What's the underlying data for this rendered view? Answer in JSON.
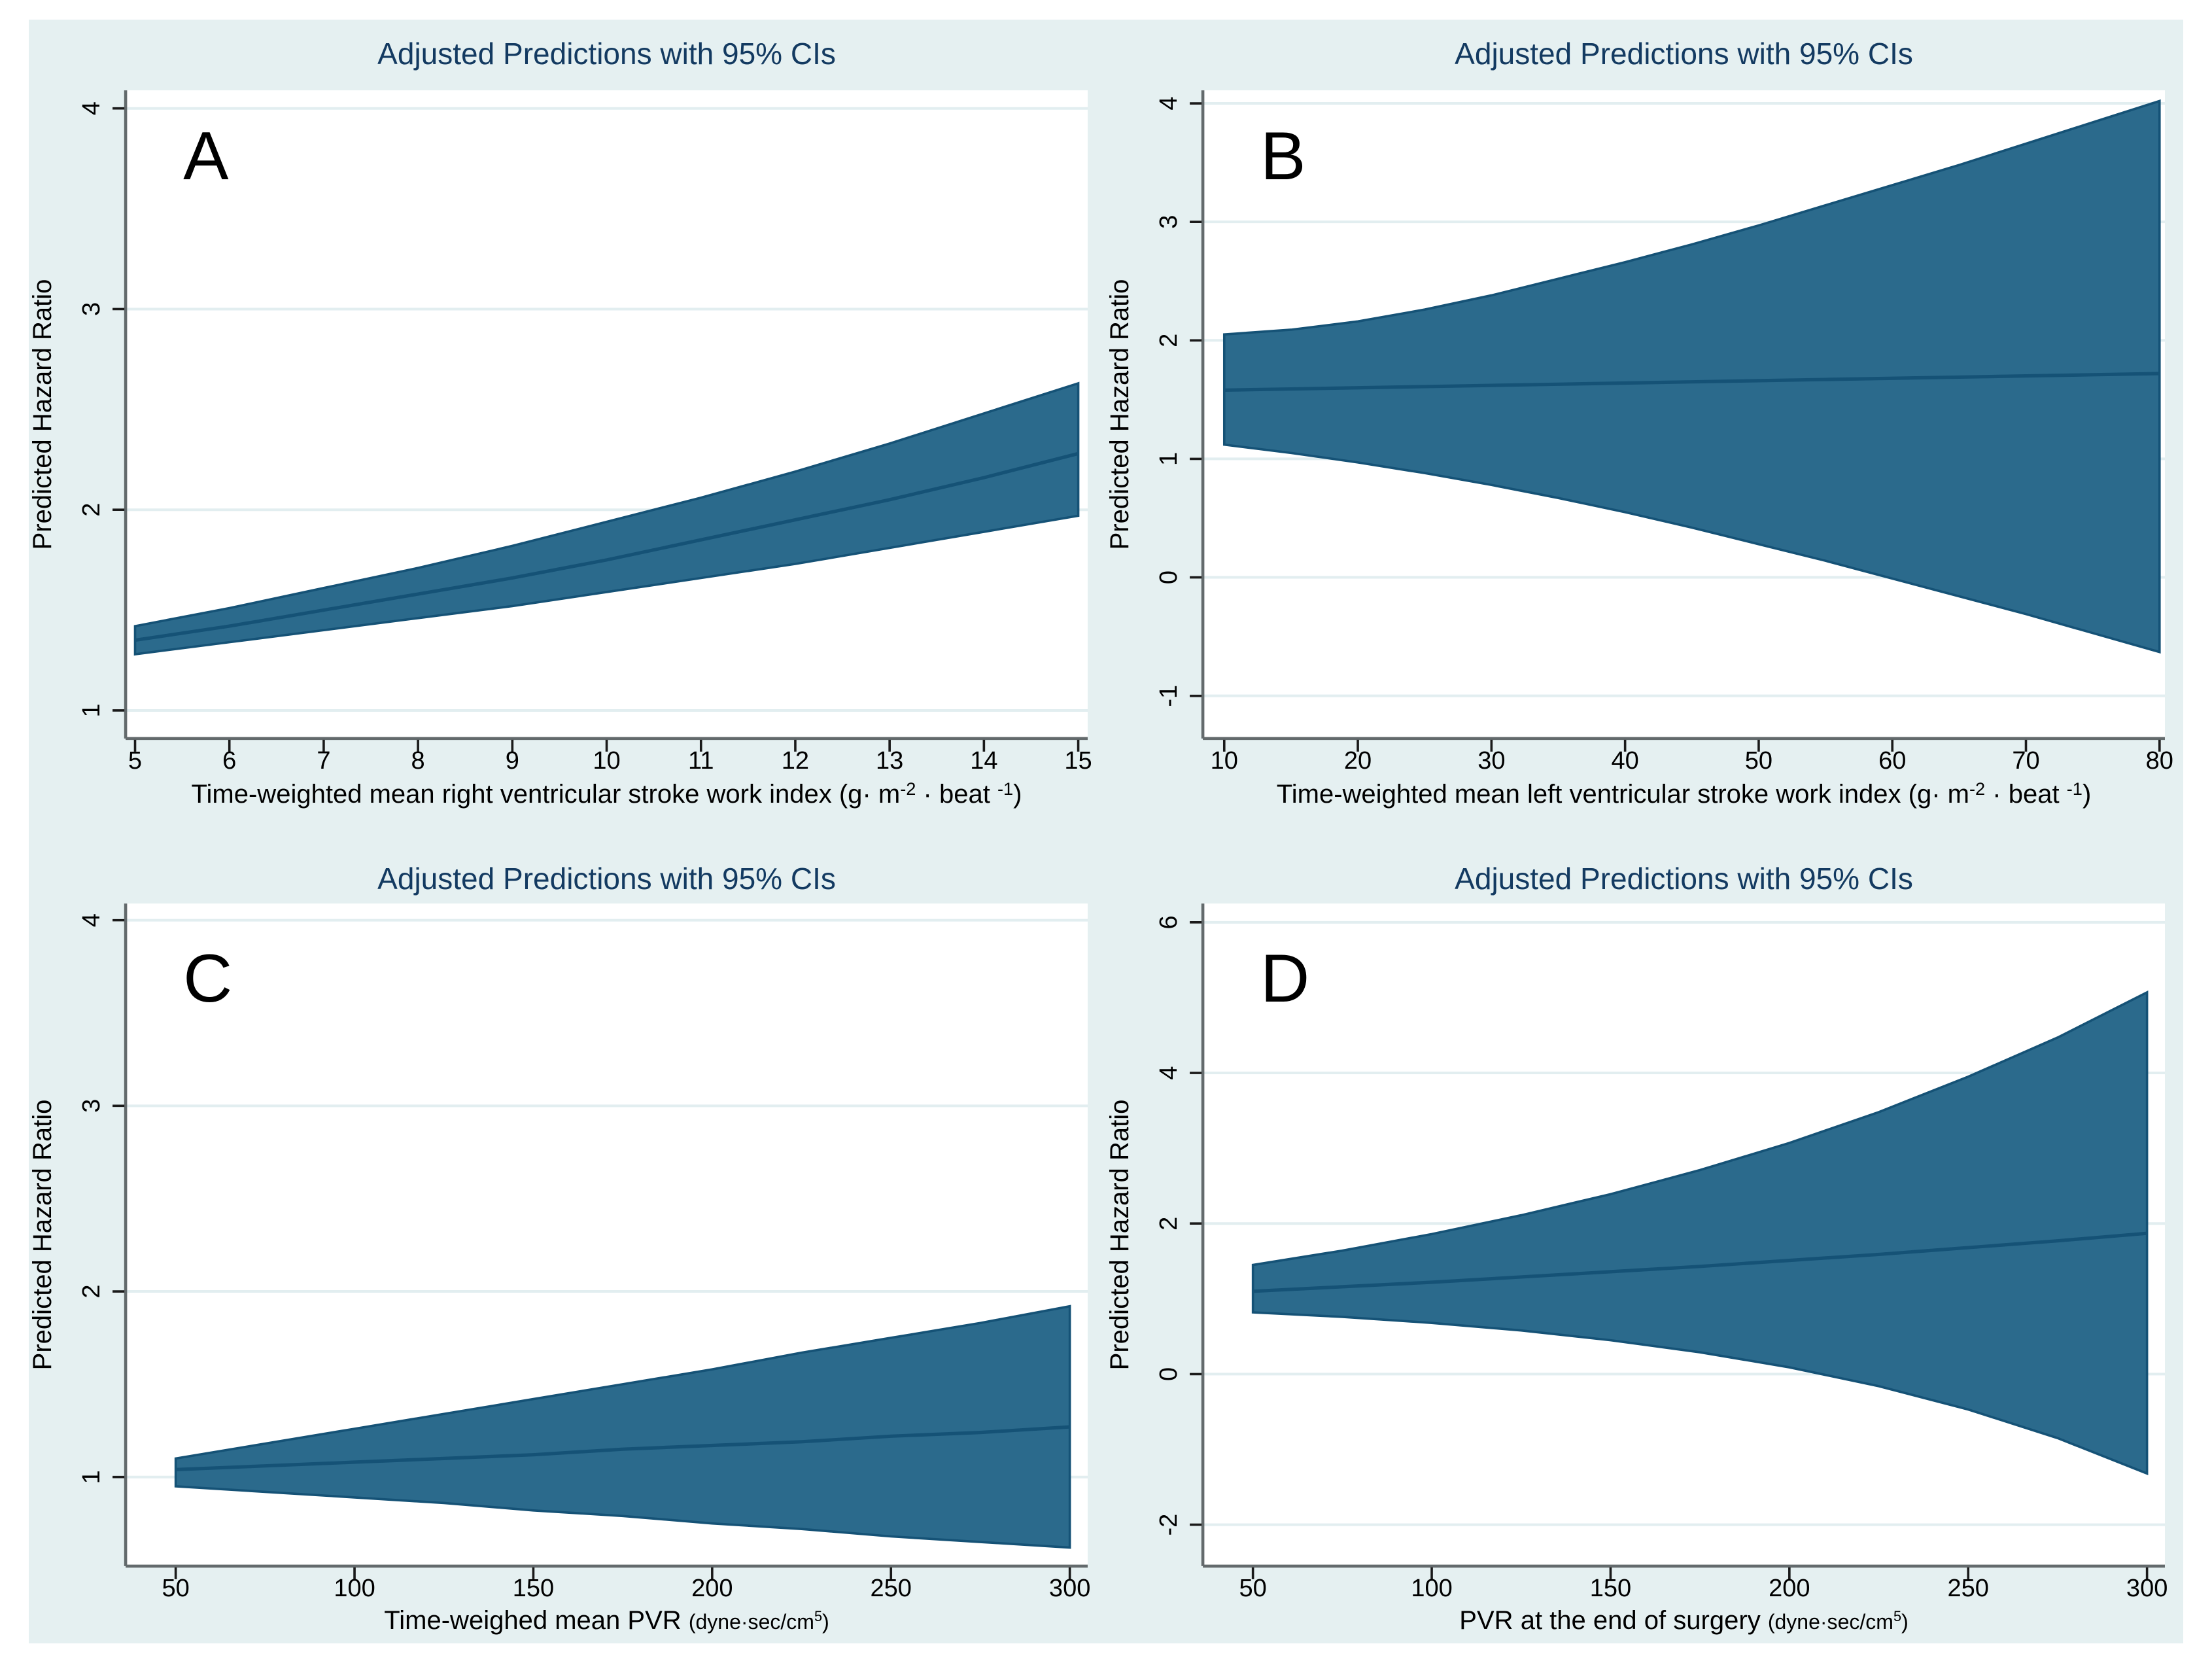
{
  "figure": {
    "page_background": "#ffffff",
    "background": "#e5f0f1",
    "plot_background": "#ffffff",
    "title_color": "#133a61",
    "axis_color": "#636a6c",
    "tick_color": "#1a1a1a",
    "text_color": "#000000",
    "grid_color": "#e2eef0",
    "band_fill": "#2b6a8c",
    "band_line": "#155276"
  },
  "chart_data": [
    {
      "type": "area",
      "panel_letter": "A",
      "title": "Adjusted Predictions with 95% CIs",
      "ylabel": "Predicted Hazard Ratio",
      "xlabel_segments": [
        {
          "t": "Time-weighted mean right ventricular stroke work index (g· m"
        },
        {
          "t": "-2",
          "sup": true
        },
        {
          "t": " · beat "
        },
        {
          "t": "-1",
          "sup": true
        },
        {
          "t": ")"
        }
      ],
      "legend": "none",
      "grid": "horizontal",
      "xlim": [
        4.9,
        15.1
      ],
      "ylim": [
        0.86,
        4.09
      ],
      "xticks": [
        5,
        6,
        7,
        8,
        9,
        10,
        11,
        12,
        13,
        14,
        15
      ],
      "yticks": [
        1,
        2,
        3,
        4
      ],
      "x": [
        5,
        6,
        7,
        8,
        9,
        10,
        11,
        12,
        13,
        14,
        15
      ],
      "fit": [
        1.35,
        1.42,
        1.5,
        1.58,
        1.66,
        1.75,
        1.85,
        1.95,
        2.05,
        2.16,
        2.28
      ],
      "hi": [
        1.42,
        1.51,
        1.61,
        1.71,
        1.82,
        1.94,
        2.06,
        2.19,
        2.33,
        2.48,
        2.63
      ],
      "lo": [
        1.28,
        1.34,
        1.4,
        1.46,
        1.52,
        1.59,
        1.66,
        1.73,
        1.81,
        1.89,
        1.97
      ]
    },
    {
      "type": "area",
      "panel_letter": "B",
      "title": "Adjusted Predictions with 95% CIs",
      "ylabel": "Predicted Hazard Ratio",
      "xlabel_segments": [
        {
          "t": "Time-weighted mean left ventricular stroke work index (g· m"
        },
        {
          "t": "-2",
          "sup": true
        },
        {
          "t": " · beat "
        },
        {
          "t": "-1",
          "sup": true
        },
        {
          "t": ")"
        }
      ],
      "legend": "none",
      "grid": "horizontal",
      "xlim": [
        8.4,
        80.4
      ],
      "ylim": [
        -1.36,
        4.11
      ],
      "xticks": [
        10,
        20,
        30,
        40,
        50,
        60,
        70,
        80
      ],
      "yticks": [
        -1,
        0,
        1,
        2,
        3,
        4
      ],
      "x": [
        10,
        15,
        20,
        25,
        30,
        35,
        40,
        45,
        50,
        55,
        60,
        65,
        70,
        75,
        80
      ],
      "fit": [
        1.58,
        1.59,
        1.6,
        1.61,
        1.62,
        1.63,
        1.64,
        1.65,
        1.66,
        1.67,
        1.68,
        1.69,
        1.7,
        1.71,
        1.72
      ],
      "hi": [
        2.05,
        2.09,
        2.16,
        2.26,
        2.38,
        2.52,
        2.66,
        2.81,
        2.97,
        3.14,
        3.31,
        3.48,
        3.66,
        3.84,
        4.02
      ],
      "lo": [
        1.12,
        1.05,
        0.97,
        0.88,
        0.78,
        0.67,
        0.55,
        0.42,
        0.28,
        0.14,
        -0.01,
        -0.16,
        -0.31,
        -0.47,
        -0.63
      ]
    },
    {
      "type": "area",
      "panel_letter": "C",
      "title": "Adjusted Predictions with 95% CIs",
      "ylabel": "Predicted Hazard Ratio",
      "xlabel_segments": [
        {
          "t": "Time-weighed mean PVR "
        },
        {
          "t": "(dyne·sec/cm",
          "small": true
        },
        {
          "t": "5",
          "small": true,
          "sup": true
        },
        {
          "t": ")",
          "small": true
        }
      ],
      "legend": "none",
      "grid": "horizontal",
      "xlim": [
        36,
        305
      ],
      "ylim": [
        0.52,
        4.09
      ],
      "xticks": [
        50,
        100,
        150,
        200,
        250,
        300
      ],
      "yticks": [
        1,
        2,
        3,
        4
      ],
      "x": [
        50,
        75,
        100,
        125,
        150,
        175,
        200,
        225,
        250,
        275,
        300
      ],
      "fit": [
        1.04,
        1.06,
        1.08,
        1.1,
        1.12,
        1.15,
        1.17,
        1.19,
        1.22,
        1.24,
        1.27
      ],
      "hi": [
        1.1,
        1.18,
        1.26,
        1.34,
        1.42,
        1.5,
        1.58,
        1.67,
        1.75,
        1.83,
        1.92
      ],
      "lo": [
        0.95,
        0.92,
        0.89,
        0.86,
        0.82,
        0.79,
        0.75,
        0.72,
        0.68,
        0.65,
        0.62
      ]
    },
    {
      "type": "area",
      "panel_letter": "D",
      "title": "Adjusted Predictions with 95% CIs",
      "ylabel": "Predicted Hazard Ratio",
      "xlabel_segments": [
        {
          "t": "PVR at the end of surgery "
        },
        {
          "t": "(dyne·sec/cm",
          "small": true
        },
        {
          "t": "5",
          "small": true,
          "sup": true
        },
        {
          "t": ")",
          "small": true
        }
      ],
      "legend": "none",
      "grid": "horizontal",
      "xlim": [
        36,
        305
      ],
      "ylim": [
        -2.55,
        6.25
      ],
      "xticks": [
        50,
        100,
        150,
        200,
        250,
        300
      ],
      "yticks": [
        -2,
        0,
        2,
        4,
        6
      ],
      "x": [
        50,
        75,
        100,
        125,
        150,
        175,
        200,
        225,
        250,
        275,
        300
      ],
      "fit": [
        1.1,
        1.16,
        1.22,
        1.29,
        1.36,
        1.43,
        1.51,
        1.59,
        1.68,
        1.77,
        1.87
      ],
      "hi": [
        1.45,
        1.64,
        1.86,
        2.11,
        2.39,
        2.71,
        3.07,
        3.48,
        3.95,
        4.47,
        5.07
      ],
      "lo": [
        0.82,
        0.76,
        0.68,
        0.58,
        0.45,
        0.29,
        0.09,
        -0.16,
        -0.47,
        -0.85,
        -1.32
      ]
    }
  ]
}
